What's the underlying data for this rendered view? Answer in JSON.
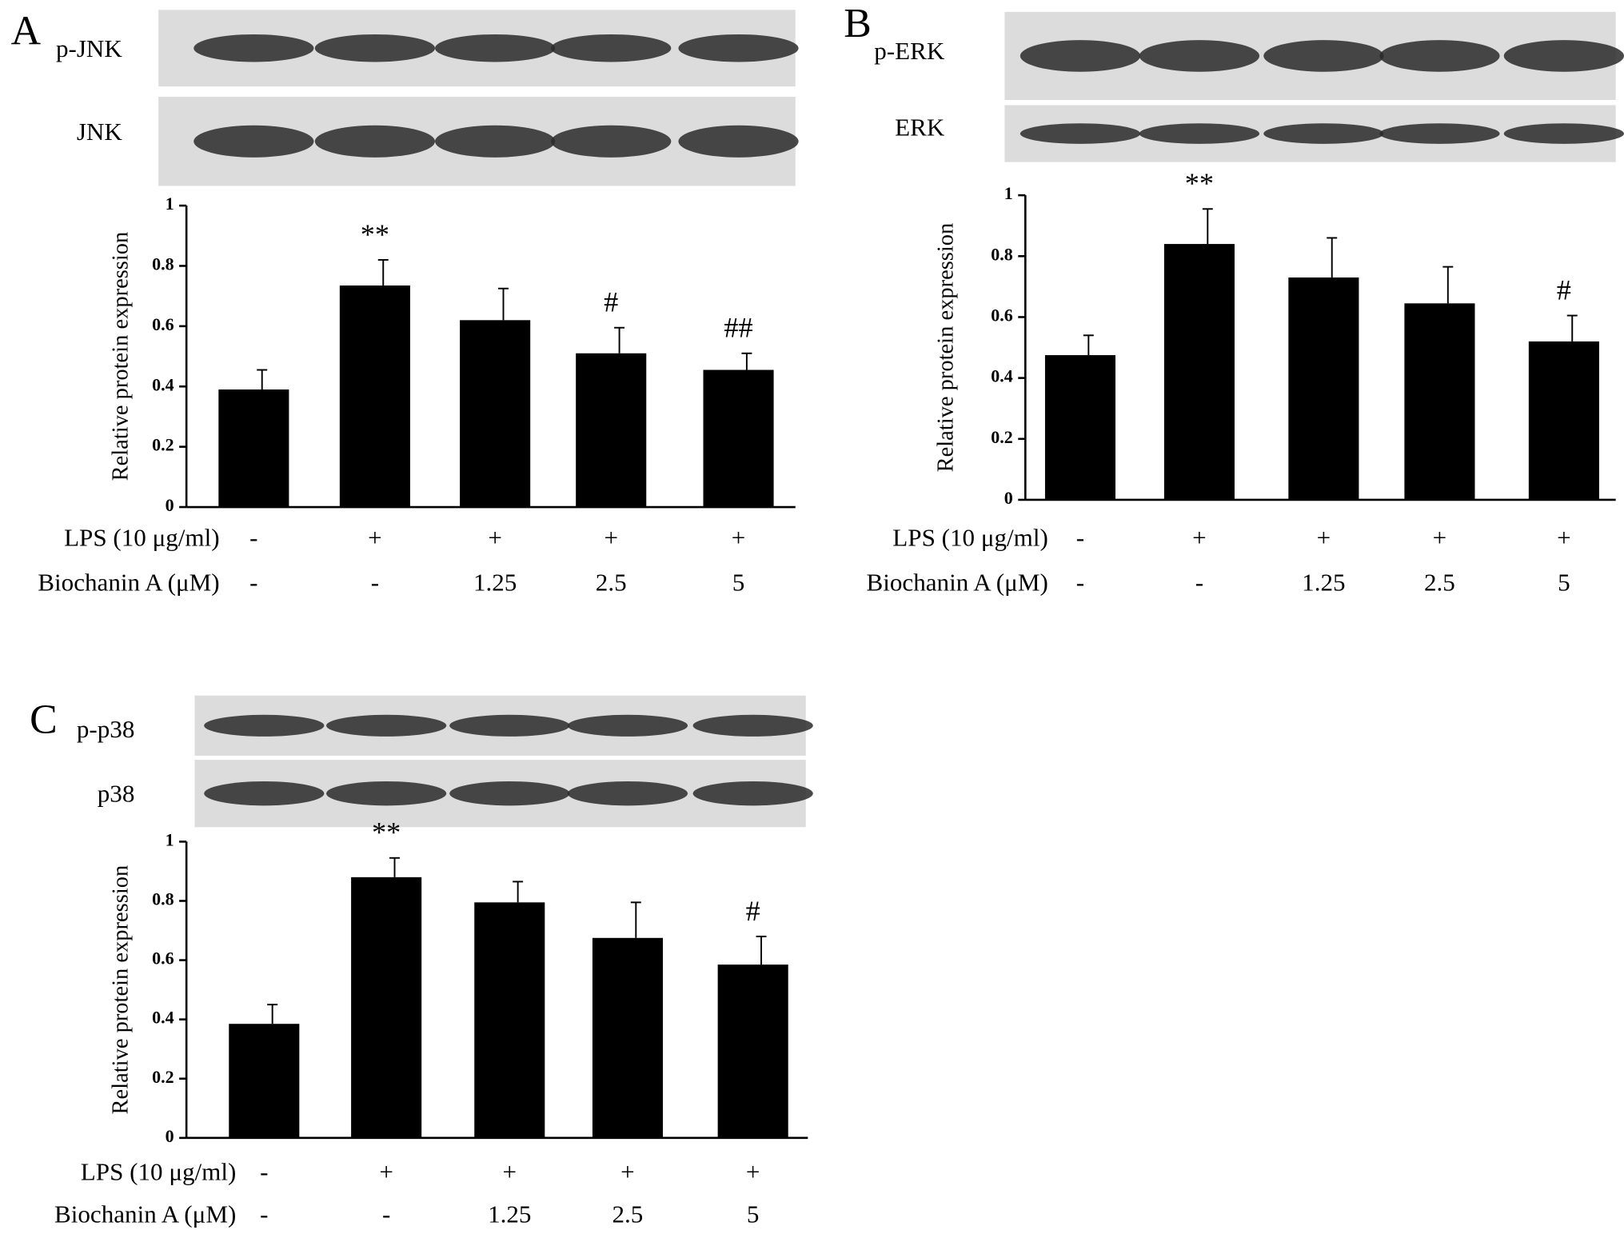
{
  "chart_data": [
    {
      "type": "bar",
      "panel": "A",
      "blot_labels": [
        "p-JNK",
        "JNK"
      ],
      "y_label": "Relative protein expression",
      "ylim": [
        0,
        1
      ],
      "yticks": [
        0,
        0.2,
        0.4,
        0.6,
        0.8,
        1
      ],
      "color": "#000000",
      "values": [
        0.39,
        0.735,
        0.62,
        0.51,
        0.455
      ],
      "errors": [
        0.065,
        0.085,
        0.105,
        0.085,
        0.055
      ],
      "annotations": [
        null,
        "**",
        null,
        "#",
        "##"
      ],
      "row_labels": [
        "LPS (10 μg/ml)",
        "Biochanin A (μM)"
      ],
      "rows": [
        [
          "-",
          "+",
          "+",
          "+",
          "+"
        ],
        [
          "-",
          "-",
          "1.25",
          "2.5",
          "5"
        ]
      ]
    },
    {
      "type": "bar",
      "panel": "B",
      "blot_labels": [
        "p-ERK",
        "ERK"
      ],
      "y_label": "Relative protein expression",
      "ylim": [
        0,
        1
      ],
      "yticks": [
        0,
        0.2,
        0.4,
        0.6,
        0.8,
        1
      ],
      "color": "#000000",
      "values": [
        0.475,
        0.84,
        0.73,
        0.645,
        0.52
      ],
      "errors": [
        0.065,
        0.115,
        0.13,
        0.12,
        0.085
      ],
      "annotations": [
        null,
        "**",
        null,
        null,
        "#"
      ],
      "row_labels": [
        "LPS (10 μg/ml)",
        "Biochanin A (μM)"
      ],
      "rows": [
        [
          "-",
          "+",
          "+",
          "+",
          "+"
        ],
        [
          "-",
          "-",
          "1.25",
          "2.5",
          "5"
        ]
      ]
    },
    {
      "type": "bar",
      "panel": "C",
      "blot_labels": [
        "p-p38",
        "p38"
      ],
      "y_label": "Relative protein expression",
      "ylim": [
        0,
        1
      ],
      "yticks": [
        0,
        0.2,
        0.4,
        0.6,
        0.8,
        1
      ],
      "color": "#000000",
      "values": [
        0.385,
        0.88,
        0.795,
        0.675,
        0.585
      ],
      "errors": [
        0.065,
        0.065,
        0.07,
        0.12,
        0.095
      ],
      "annotations": [
        null,
        "**",
        null,
        null,
        "#"
      ],
      "row_labels": [
        "LPS (10 μg/ml)",
        "Biochanin A (μM)"
      ],
      "rows": [
        [
          "-",
          "+",
          "+",
          "+",
          "+"
        ],
        [
          "-",
          "-",
          "1.25",
          "2.5",
          "5"
        ]
      ]
    }
  ]
}
